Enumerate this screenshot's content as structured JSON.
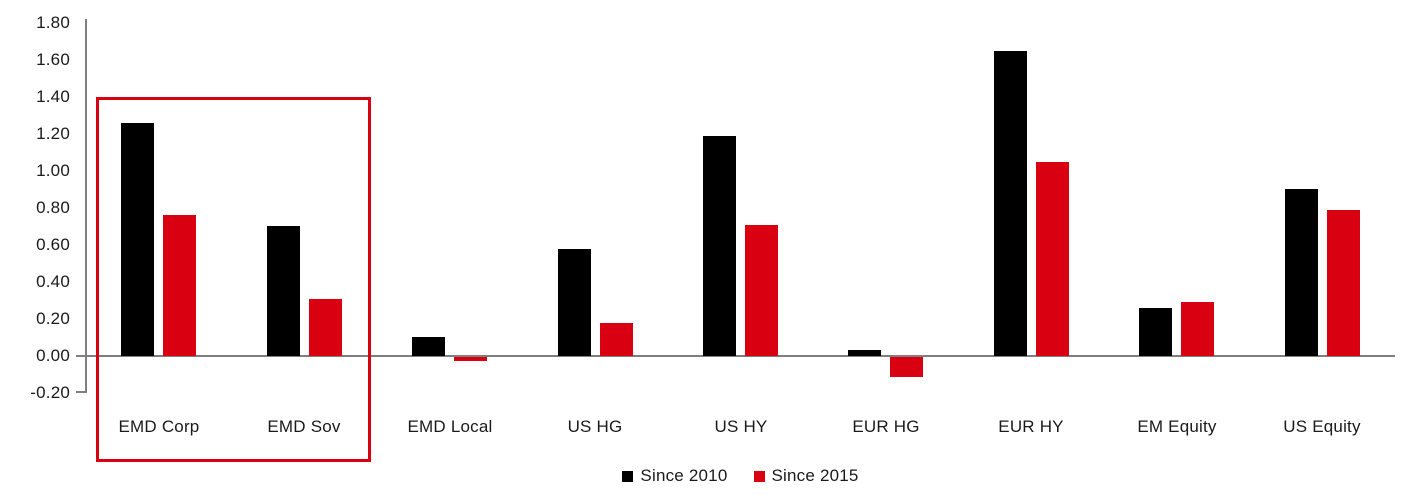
{
  "chart_data": {
    "type": "bar",
    "title": "",
    "xlabel": "",
    "ylabel": "",
    "categories": [
      "EMD Corp",
      "EMD Sov",
      "EMD Local",
      "US HG",
      "US HY",
      "EUR HG",
      "EUR HY",
      "EM Equity",
      "US Equity"
    ],
    "series": [
      {
        "name": "Since 2010",
        "color": "#000000",
        "values": [
          1.26,
          0.7,
          0.1,
          0.58,
          1.19,
          0.03,
          1.65,
          0.26,
          0.9
        ]
      },
      {
        "name": "Since 2015",
        "color": "#d90012",
        "values": [
          0.76,
          0.31,
          -0.02,
          0.18,
          0.71,
          -0.11,
          1.05,
          0.29,
          0.79
        ]
      }
    ],
    "ylim": [
      -0.2,
      1.8
    ],
    "ytick_step": 0.2,
    "ytick_labels": [
      "-0.20",
      "0.00",
      "0.20",
      "0.40",
      "0.60",
      "0.80",
      "1.00",
      "1.20",
      "1.40",
      "1.60",
      "1.80"
    ],
    "grid": false,
    "legend_position": "bottom-center",
    "axis_color": "#7f7f7f",
    "annotations": [
      {
        "type": "rect",
        "purpose": "highlight-box",
        "categories_covered": [
          "EMD Corp",
          "EMD Sov"
        ],
        "color": "#d90012"
      }
    ]
  }
}
